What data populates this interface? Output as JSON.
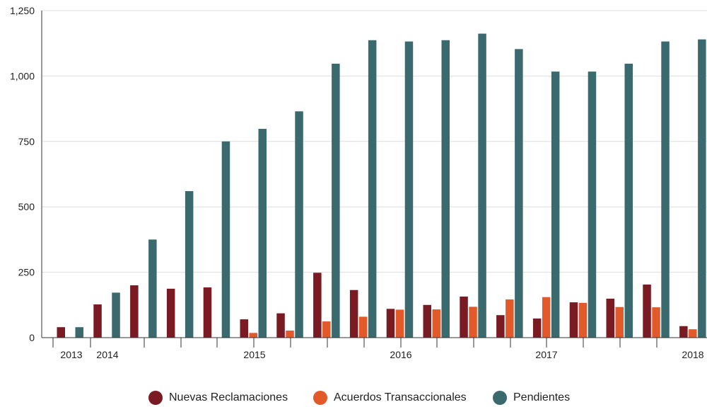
{
  "chart_data": {
    "type": "bar",
    "ylim": [
      0,
      1250
    ],
    "yticks": [
      0,
      250,
      500,
      750,
      1000,
      1250
    ],
    "ytick_labels": [
      "0",
      "250",
      "500",
      "750",
      "1,000",
      "1,250"
    ],
    "xtick_labels": [
      "2013",
      "2014",
      "2015",
      "2016",
      "2017",
      "2018"
    ],
    "grid": "horizontal",
    "legend": "bottom-center",
    "series": [
      {
        "name": "Nuevas Reclamaciones",
        "color": "#7a1a22",
        "values": [
          40,
          127,
          200,
          187,
          192,
          70,
          93,
          248,
          182,
          110,
          125,
          157,
          86,
          73,
          135,
          149,
          203,
          44
        ]
      },
      {
        "name": "Acuerdos Transaccionales",
        "color": "#e35a2a",
        "values": [
          0,
          0,
          0,
          0,
          0,
          18,
          27,
          62,
          80,
          107,
          108,
          118,
          146,
          155,
          133,
          117,
          116,
          32
        ]
      },
      {
        "name": "Pendientes",
        "color": "#3b6a6e",
        "values": [
          40,
          172,
          375,
          560,
          750,
          798,
          865,
          1047,
          1137,
          1132,
          1137,
          1162,
          1103,
          1017,
          1017,
          1047,
          1132,
          1140
        ]
      }
    ]
  }
}
